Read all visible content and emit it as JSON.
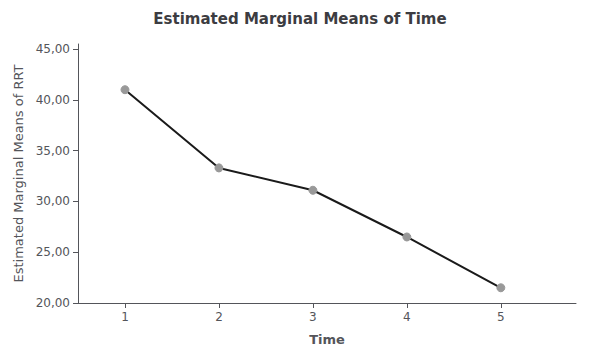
{
  "chart_data": {
    "type": "line",
    "title": "Estimated Marginal Means of Time",
    "xlabel": "Time",
    "ylabel": "Estimated Marginal Means of RRT",
    "x": [
      1,
      2,
      3,
      4,
      5
    ],
    "values": [
      41.0,
      33.3,
      31.1,
      26.5,
      21.5
    ],
    "color": "#1a1a1a",
    "colors": [
      "#999999",
      "#999999",
      "#999999",
      "#999999",
      "#999999"
    ],
    "marker": "circle",
    "xlim": [
      0.5,
      5.8
    ],
    "xticks": [
      1,
      2,
      3,
      4,
      5
    ],
    "ylim": [
      20.0,
      45.5
    ],
    "yticks": [
      {
        "value": 20.0,
        "label": "20,00"
      },
      {
        "value": 25.0,
        "label": "25,00"
      },
      {
        "value": 30.0,
        "label": "30,00"
      },
      {
        "value": 35.0,
        "label": "35,00"
      },
      {
        "value": 40.0,
        "label": "40,00"
      },
      {
        "value": 45.0,
        "label": "45,00"
      }
    ],
    "grid": false
  }
}
